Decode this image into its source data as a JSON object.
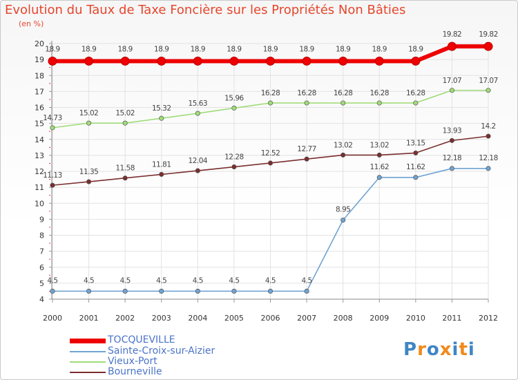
{
  "chart_data": {
    "type": "line",
    "title": "Evolution du Taux de Taxe Foncière sur les Propriétés Non Bâties",
    "ylabel": "(en %)",
    "xlabel": "",
    "x": [
      "2000",
      "2001",
      "2002",
      "2003",
      "2004",
      "2005",
      "2006",
      "2007",
      "2008",
      "2009",
      "2010",
      "2011",
      "2012"
    ],
    "ylim": [
      4,
      20
    ],
    "yticks": [
      "4",
      "5",
      "6",
      "7",
      "8",
      "9",
      "10",
      "11",
      "12",
      "13",
      "14",
      "15",
      "16",
      "17",
      "18",
      "19",
      "20"
    ],
    "grid": true,
    "legend_position": "bottom-left",
    "series": [
      {
        "name": "TOCQUEVILLE",
        "color": "#ee0000",
        "values": [
          18.9,
          18.9,
          18.9,
          18.9,
          18.9,
          18.9,
          18.9,
          18.9,
          18.9,
          18.9,
          18.9,
          19.82,
          19.82
        ],
        "labels": [
          "18.9",
          "18.9",
          "18.9",
          "18.9",
          "18.9",
          "18.9",
          "18.9",
          "18.9",
          "18.9",
          "18.9",
          "18.9",
          "19.82",
          "19.82"
        ]
      },
      {
        "name": "Sainte-Croix-sur-Aizier",
        "color": "#6fa3d2",
        "values": [
          4.5,
          4.5,
          4.5,
          4.5,
          4.5,
          4.5,
          4.5,
          4.5,
          8.95,
          11.62,
          11.62,
          12.18,
          12.18
        ],
        "labels": [
          "4.5",
          "4.5",
          "4.5",
          "4.5",
          "4.5",
          "4.5",
          "4.5",
          "4.5",
          "8.95",
          "11.62",
          "11.62",
          "12.18",
          "12.18"
        ]
      },
      {
        "name": "Vieux-Port",
        "color": "#9fdc78",
        "values": [
          14.73,
          15.02,
          15.02,
          15.32,
          15.63,
          15.96,
          16.28,
          16.28,
          16.28,
          16.28,
          16.28,
          17.07,
          17.07
        ],
        "labels": [
          "14.73",
          "15.02",
          "15.02",
          "15.32",
          "15.63",
          "15.96",
          "16.28",
          "16.28",
          "16.28",
          "16.28",
          "16.28",
          "17.07",
          "17.07"
        ]
      },
      {
        "name": "Bourneville",
        "color": "#7a2e2e",
        "values": [
          11.13,
          11.35,
          11.58,
          11.81,
          12.04,
          12.28,
          12.52,
          12.77,
          13.02,
          13.02,
          13.15,
          13.93,
          14.2
        ],
        "labels": [
          "11.13",
          "11.35",
          "11.58",
          "11.81",
          "12.04",
          "12.28",
          "12.52",
          "12.77",
          "13.02",
          "13.02",
          "13.15",
          "13.93",
          "14.2"
        ]
      }
    ]
  },
  "branding": {
    "letters": [
      "P",
      "r",
      "o",
      "x",
      "i",
      "t",
      "i"
    ],
    "colors": [
      "#3e86c6",
      "#f08a1d",
      "#3e86c6",
      "#f08a1d",
      "#3e86c6",
      "#f08a1d",
      "#3e86c6"
    ]
  }
}
